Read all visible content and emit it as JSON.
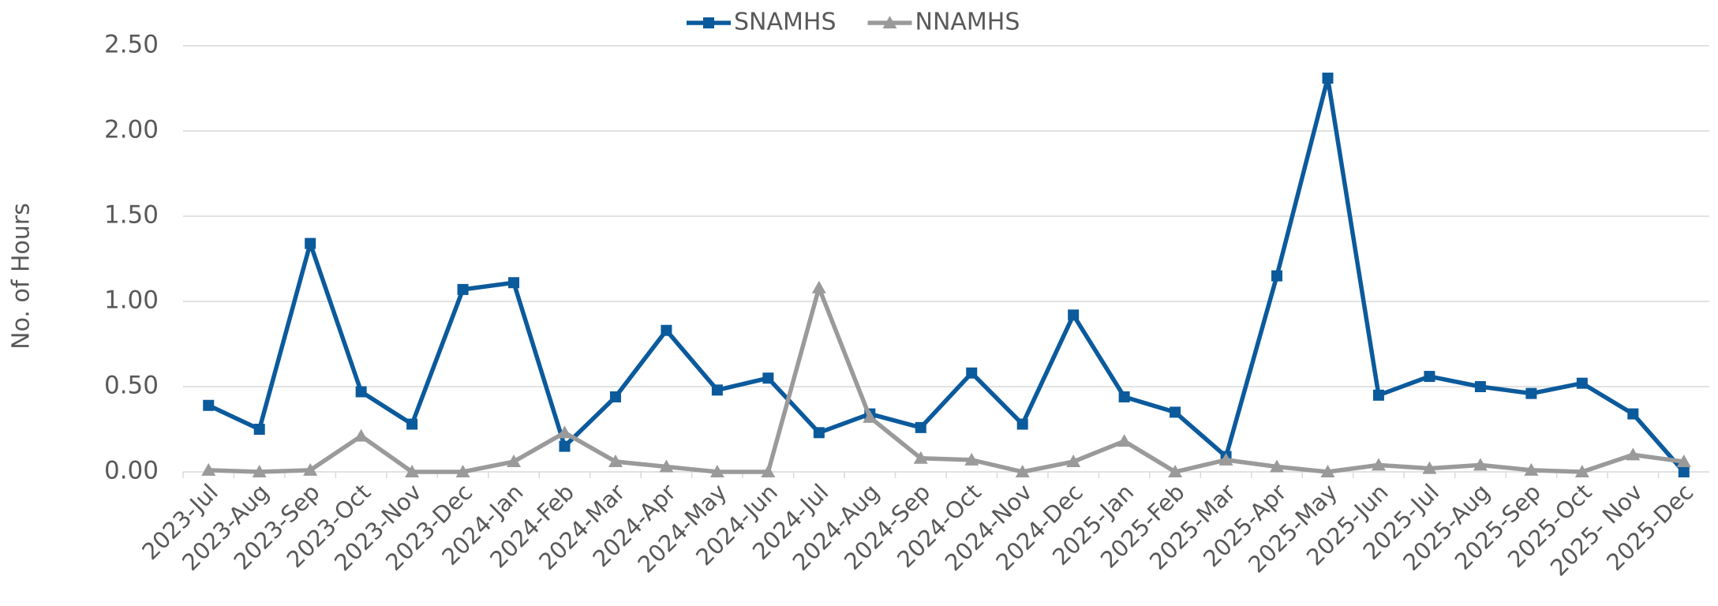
{
  "chart_data": {
    "type": "line",
    "y_label": "No. of Hours",
    "categories": [
      "2023-Jul",
      "2023-Aug",
      "2023-Sep",
      "2023-Oct",
      "2023-Nov",
      "2023-Dec",
      "2024-Jan",
      "2024-Feb",
      "2024-Mar",
      "2024-Apr",
      "2024-May",
      "2024-Jun",
      "2024-Jul",
      "2024-Aug",
      "2024-Sep",
      "2024-Oct",
      "2024-Nov",
      "2024-Dec",
      "2025-Jan",
      "2025-Feb",
      "2025-Mar",
      "2025-Apr",
      "2025-May",
      "2025-Jun",
      "2025-Jul",
      "2025-Aug",
      "2025-Sep",
      "2025-Oct",
      "2025- Nov",
      "2025-Dec"
    ],
    "series": [
      {
        "name": "SNAMHS",
        "color": "#0b5a9c",
        "marker": "square",
        "values": [
          0.39,
          0.25,
          1.34,
          0.47,
          0.28,
          1.07,
          1.11,
          0.15,
          0.44,
          0.83,
          0.48,
          0.55,
          0.23,
          0.34,
          0.26,
          0.58,
          0.28,
          0.92,
          0.44,
          0.35,
          0.09,
          1.15,
          2.31,
          0.45,
          0.56,
          0.5,
          0.46,
          0.52,
          0.34,
          0.0
        ]
      },
      {
        "name": "NNAMHS",
        "color": "#9a9a9a",
        "marker": "triangle",
        "values": [
          0.01,
          0,
          0.01,
          0.21,
          0,
          0,
          0.06,
          0.23,
          0.06,
          0.03,
          0,
          0,
          1.08,
          0.32,
          0.08,
          0.07,
          0,
          0.06,
          0.18,
          0,
          0.07,
          0.03,
          0,
          0.04,
          0.02,
          0.04,
          0.01,
          0,
          0.1,
          0.06
        ]
      }
    ],
    "ylim": [
      0,
      2.5
    ],
    "yticks": [
      {
        "value": 0,
        "label": "0.00"
      },
      {
        "value": 0.5,
        "label": "0.50"
      },
      {
        "value": 1,
        "label": "1.00"
      },
      {
        "value": 1.5,
        "label": "1.50"
      },
      {
        "value": 2,
        "label": "2.00"
      },
      {
        "value": 2.5,
        "label": "2.50"
      }
    ],
    "grid": true,
    "legend": "top"
  }
}
